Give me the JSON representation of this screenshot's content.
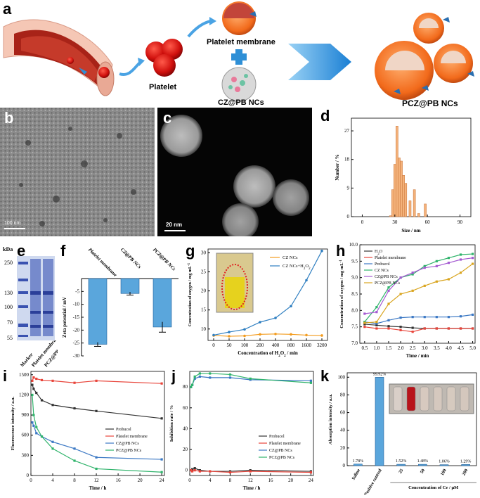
{
  "panel_labels": {
    "a": "a",
    "b": "b",
    "c": "c",
    "d": "d",
    "e": "e",
    "f": "f",
    "g": "g",
    "h": "h",
    "i": "i",
    "j": "j",
    "k": "k"
  },
  "schematic": {
    "platelet": "Platelet",
    "platelet_membrane": "Platelet membrane",
    "czpb": "CZ@PB NCs",
    "pczpb": "PCZ@PB NCs"
  },
  "scale_bars": {
    "b": "100 nm",
    "c": "20 nm"
  },
  "gel": {
    "kda_label": "kDa",
    "markers": [
      "250",
      "130",
      "100",
      "70",
      "55"
    ],
    "lanes": [
      "Marker",
      "Platelet membrane",
      "PCZ@PB NCs"
    ]
  },
  "chart_data": [
    {
      "id": "d",
      "type": "bar",
      "xlabel": "Size / nm",
      "ylabel": "Number / %",
      "xlim": [
        -10,
        100
      ],
      "ylim": [
        0,
        31
      ],
      "xticks": [
        0,
        30,
        60,
        90
      ],
      "yticks": [
        0,
        9,
        18,
        27
      ],
      "bin_centers": [
        26,
        28,
        30,
        32,
        34,
        36,
        38,
        40,
        44,
        48,
        52,
        58
      ],
      "values": [
        0.3,
        8.5,
        16.5,
        28.5,
        18.5,
        17.5,
        13,
        10.5,
        5,
        8.5,
        1,
        4
      ]
    },
    {
      "id": "f",
      "type": "bar",
      "ylabel": "Zeta potential / mV",
      "ylim": [
        -30,
        0
      ],
      "yticks": [
        -5,
        -10,
        -15,
        -20,
        -25,
        -30
      ],
      "categories": [
        "Platelet membrane",
        "CZ@PB NCs",
        "PCZ@PB NCs"
      ],
      "values": [
        -25.5,
        -5.8,
        -18.8
      ],
      "errors": [
        0.8,
        0.6,
        2.0
      ]
    },
    {
      "id": "g",
      "type": "line",
      "xlabel": "Concentration of H2O2 / min",
      "ylabel": "Concentration of oxygen / mg mL-1",
      "ylim": [
        7,
        31
      ],
      "yticks": [
        10,
        15,
        20,
        25,
        30
      ],
      "categories": [
        "0",
        "50",
        "100",
        "200",
        "400",
        "800",
        "1600",
        "3200"
      ],
      "series": [
        {
          "name": "CZ NCs",
          "color": "#f39c1f",
          "values": [
            8.3,
            8.1,
            8.2,
            8.6,
            8.7,
            8.6,
            8.4,
            8.3
          ]
        },
        {
          "name": "CZ NCs+H2O2",
          "color": "#2f7fc1",
          "values": [
            8.4,
            9.2,
            9.9,
            11.8,
            12.9,
            16.0,
            22.8,
            30.5
          ]
        }
      ]
    },
    {
      "id": "h",
      "type": "line",
      "xlabel": "Time / min",
      "ylabel": "Concentration of oxygen / mg mL-1",
      "xlim": [
        0.3,
        5.1
      ],
      "ylim": [
        7.0,
        10.0
      ],
      "xticks": [
        0.5,
        1.0,
        1.5,
        2.0,
        2.5,
        3.0,
        3.5,
        4.0,
        4.5,
        5.0
      ],
      "yticks": [
        7.0,
        7.5,
        8.0,
        8.5,
        9.0,
        9.5,
        10.0
      ],
      "x": [
        0.5,
        1.0,
        1.5,
        2.0,
        2.5,
        3.0,
        3.5,
        4.0,
        4.5,
        5.0
      ],
      "series": [
        {
          "name": "H2O",
          "color": "#333333",
          "values": [
            7.58,
            7.55,
            7.52,
            7.5,
            7.47,
            7.45,
            7.45,
            7.45,
            7.45,
            7.45
          ]
        },
        {
          "name": "Platelet membrane",
          "color": "#e8443a",
          "values": [
            7.5,
            7.45,
            7.45,
            7.4,
            7.35,
            7.45,
            7.45,
            7.45,
            7.45,
            7.45
          ]
        },
        {
          "name": "Probucol",
          "color": "#3b78c4",
          "values": [
            7.65,
            7.6,
            7.7,
            7.78,
            7.8,
            7.8,
            7.8,
            7.8,
            7.82,
            7.87
          ]
        },
        {
          "name": "CZ NCs",
          "color": "#2fb36b",
          "values": [
            7.65,
            8.1,
            8.7,
            9.0,
            9.1,
            9.35,
            9.5,
            9.6,
            9.7,
            9.72
          ]
        },
        {
          "name": "CZ@PB NCs",
          "color": "#a45ad1",
          "values": [
            7.9,
            7.95,
            8.6,
            9.0,
            9.15,
            9.3,
            9.35,
            9.45,
            9.55,
            9.6
          ]
        },
        {
          "name": "PCZ@PB NCs",
          "color": "#d9a51f",
          "values": [
            7.62,
            7.65,
            8.2,
            8.5,
            8.6,
            8.75,
            8.88,
            8.95,
            9.15,
            9.42
          ]
        }
      ]
    },
    {
      "id": "i",
      "type": "line",
      "xlabel": "Time / h",
      "ylabel": "Fluorescence intensity / a.u.",
      "xlim": [
        0,
        24.5
      ],
      "ylim": [
        0,
        1550
      ],
      "xticks": [
        0,
        4,
        8,
        12,
        16,
        20,
        24
      ],
      "yticks": [
        0,
        300,
        600,
        900,
        1200,
        1500
      ],
      "x": [
        0.25,
        0.5,
        1,
        2,
        4,
        8,
        12,
        24
      ],
      "series": [
        {
          "name": "Probucol",
          "color": "#333333",
          "values": [
            1350,
            1290,
            1230,
            1120,
            1050,
            1000,
            960,
            850
          ]
        },
        {
          "name": "Platelet membrane",
          "color": "#e8443a",
          "values": [
            1410,
            1460,
            1440,
            1420,
            1410,
            1380,
            1410,
            1370
          ]
        },
        {
          "name": "CZ@PB NCs",
          "color": "#3b78c4",
          "values": [
            790,
            740,
            630,
            580,
            500,
            400,
            270,
            240
          ]
        },
        {
          "name": "PCZ@PB NCs",
          "color": "#2fb36b",
          "values": [
            1200,
            900,
            720,
            580,
            400,
            220,
            100,
            50
          ]
        }
      ]
    },
    {
      "id": "j",
      "type": "line",
      "xlabel": "Time / h",
      "ylabel": "Inhibition rate / %",
      "xlim": [
        0,
        24.5
      ],
      "ylim": [
        -5,
        95
      ],
      "xticks": [
        0,
        4,
        8,
        12,
        16,
        20,
        24
      ],
      "yticks": [
        0,
        20,
        40,
        60,
        80
      ],
      "x": [
        0.25,
        0.5,
        1,
        2,
        4,
        8,
        12,
        24
      ],
      "series": [
        {
          "name": "Probucol",
          "color": "#333333",
          "values": [
            0,
            1,
            2,
            0,
            -1,
            -1,
            0,
            -1
          ]
        },
        {
          "name": "Platelet membrane",
          "color": "#e8443a",
          "values": [
            0,
            -1,
            0,
            -1,
            -1,
            -2,
            -1,
            -2
          ]
        },
        {
          "name": "CZ@PB NCs",
          "color": "#3b78c4",
          "values": [
            80,
            82,
            88,
            90,
            89,
            89,
            87,
            86
          ]
        },
        {
          "name": "PCZ@PB NCs",
          "color": "#2fb36b",
          "values": [
            80,
            82,
            90,
            93,
            93,
            92,
            88,
            84
          ]
        }
      ]
    },
    {
      "id": "k",
      "type": "bar",
      "ylabel": "Absorption intensity / a.u.",
      "xlabel": "Concentration of Ce / μM",
      "ylim": [
        0,
        105
      ],
      "yticks": [
        0,
        20,
        40,
        60,
        80,
        100
      ],
      "categories": [
        "Saline",
        "Positive control",
        "25",
        "50",
        "100",
        "200"
      ],
      "values": [
        1.78,
        99.92,
        1.52,
        1.48,
        1.06,
        1.29
      ],
      "data_labels": [
        "1.78%",
        "99.92%",
        "1.52%",
        "1.48%",
        "1.06%",
        "1.29%"
      ]
    }
  ]
}
